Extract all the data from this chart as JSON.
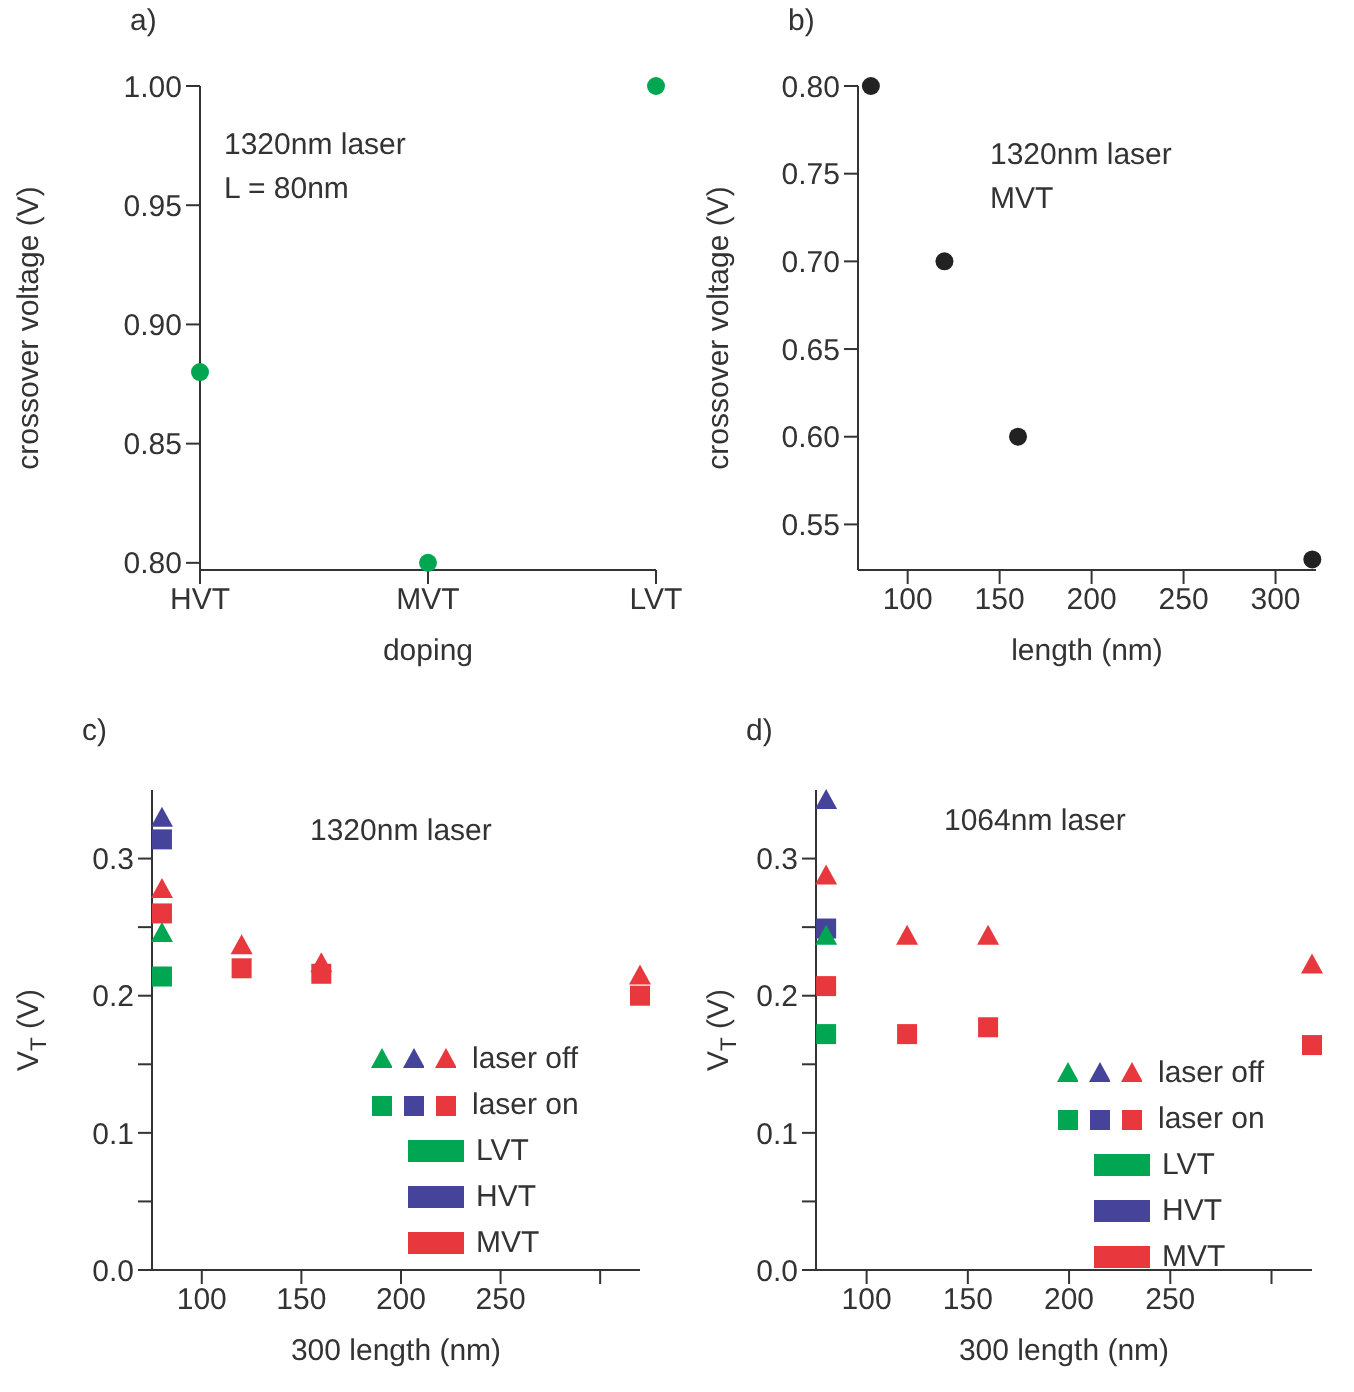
{
  "chart_data": [
    {
      "type": "scatter",
      "title": "a)",
      "xlabel": "doping",
      "ylabel": "crossover voltage (V)",
      "categories": [
        "HVT",
        "MVT",
        "LVT"
      ],
      "annotations": [
        "1320nm laser",
        "L = 80nm"
      ],
      "marker": "circle",
      "grid": false,
      "legend": false,
      "ylim": [
        0.797,
        1.0
      ],
      "yticks": [
        {
          "value": 0.8,
          "label": "0.80"
        },
        {
          "value": 0.85,
          "label": "0.85"
        },
        {
          "value": 0.9,
          "label": "0.90"
        },
        {
          "value": 0.95,
          "label": "0.95"
        },
        {
          "value": 1.0,
          "label": "1.00"
        }
      ],
      "series": [
        {
          "color": "#00a651",
          "values": [
            0.88,
            0.8,
            1.0
          ]
        }
      ]
    },
    {
      "type": "scatter",
      "title": "b)",
      "xlabel": "length  (nm)",
      "ylabel": "crossover voltage (V)",
      "annotations": [
        "1320nm laser",
        "MVT"
      ],
      "marker": "circle",
      "grid": false,
      "legend": false,
      "xlim": [
        73,
        322
      ],
      "xticks": [
        100,
        150,
        200,
        250,
        300
      ],
      "ylim": [
        0.524,
        0.8
      ],
      "yticks": [
        {
          "value": 0.55,
          "label": "0.55"
        },
        {
          "value": 0.6,
          "label": "0.60"
        },
        {
          "value": 0.65,
          "label": "0.65"
        },
        {
          "value": 0.7,
          "label": "0.70"
        },
        {
          "value": 0.75,
          "label": "0.75"
        },
        {
          "value": 0.8,
          "label": "0.80"
        }
      ],
      "series": [
        {
          "color": "#222222",
          "x": [
            80,
            120,
            160,
            320
          ],
          "values": [
            0.8,
            0.7,
            0.6,
            0.53
          ]
        }
      ]
    },
    {
      "type": "scatter",
      "title": "c)",
      "xlabel": "300 length (nm)",
      "ylabel": "V$_{T}$  (V)",
      "annotations": [
        "1320nm laser",
        "LVT",
        "HVT",
        "MVT"
      ],
      "grid": false,
      "legend": "bottom right",
      "xlim": [
        75,
        320
      ],
      "xticks": [
        100,
        150,
        200,
        250,
        {
          "value": 300,
          "label": null
        }
      ],
      "ylim": [
        0,
        0.35
      ],
      "yticks": [
        {
          "value": 0,
          "label": "0.0"
        },
        {
          "value": 0.05,
          "label": null
        },
        {
          "value": 0.1,
          "label": "0.1"
        },
        {
          "value": 0.15,
          "label": null
        },
        {
          "value": 0.2,
          "label": "0.2"
        },
        {
          "value": 0.25,
          "label": null
        },
        {
          "value": 0.3,
          "label": "0.3"
        }
      ],
      "series": [
        {
          "name": "laser off",
          "marker": "triangle",
          "x": [
            80,
            80,
            80,
            120,
            160,
            320
          ],
          "values": [
            0.245,
            0.329,
            0.277,
            0.236,
            0.223,
            0.214
          ],
          "colors": [
            "#00a651",
            "#45449a",
            "#e8383d",
            "#e8383d",
            "#e8383d",
            "#e8383d"
          ]
        },
        {
          "name": "laser on",
          "marker": "square",
          "x": [
            80,
            80,
            80,
            120,
            160,
            320
          ],
          "values": [
            0.214,
            0.314,
            0.26,
            0.22,
            0.216,
            0.2
          ],
          "colors": [
            "#00a651",
            "#45449a",
            "#e8383d",
            "#e8383d",
            "#e8383d",
            "#e8383d"
          ]
        }
      ]
    },
    {
      "type": "scatter",
      "title": "d)",
      "xlabel": "300 length (nm)",
      "ylabel": "V$_{T}$  (V)",
      "annotations": [
        "1064nm laser",
        "LVT",
        "HVT",
        "MVT"
      ],
      "grid": false,
      "legend": "bottom right",
      "xlim": [
        75,
        320
      ],
      "xticks": [
        100,
        150,
        200,
        250,
        {
          "value": 300,
          "label": null
        }
      ],
      "ylim": [
        0,
        0.35
      ],
      "yticks": [
        {
          "value": 0,
          "label": "0.0"
        },
        {
          "value": 0.05,
          "label": null
        },
        {
          "value": 0.1,
          "label": "0.1"
        },
        {
          "value": 0.15,
          "label": null
        },
        {
          "value": 0.2,
          "label": "0.2"
        },
        {
          "value": 0.25,
          "label": null
        },
        {
          "value": 0.3,
          "label": "0.3"
        }
      ],
      "series": [
        {
          "name": "laser off",
          "marker": "triangle",
          "x": [
            80,
            80,
            80,
            120,
            160,
            320
          ],
          "values": [
            0.243,
            0.342,
            0.287,
            0.243,
            0.243,
            0.222
          ],
          "colors": [
            "#00a651",
            "#45449a",
            "#e8383d",
            "#e8383d",
            "#e8383d",
            "#e8383d"
          ]
        },
        {
          "name": "laser on",
          "marker": "square",
          "x": [
            80,
            80,
            80,
            120,
            160,
            320
          ],
          "values": [
            0.172,
            0.249,
            0.207,
            0.172,
            0.177,
            0.164
          ],
          "colors": [
            "#00a651",
            "#45449a",
            "#e8383d",
            "#e8383d",
            "#e8383d",
            "#e8383d"
          ]
        }
      ]
    }
  ]
}
